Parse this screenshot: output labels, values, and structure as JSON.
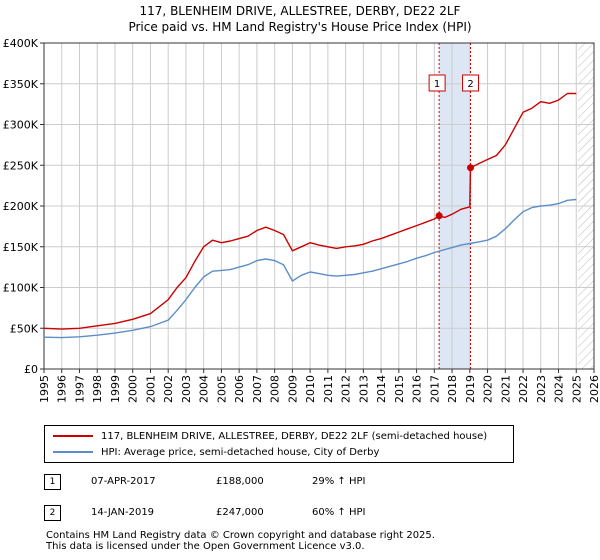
{
  "chart_data": {
    "type": "line",
    "title": "117, BLENHEIM DRIVE, ALLESTREE, DERBY, DE22 2LF",
    "subtitle": "Price paid vs. HM Land Registry's House Price Index (HPI)",
    "xlabel": "",
    "ylabel": "",
    "xlim": [
      1995,
      2026
    ],
    "ylim": [
      0,
      400000
    ],
    "x_ticks": [
      "1995",
      "1996",
      "1997",
      "1998",
      "1999",
      "2000",
      "2001",
      "2002",
      "2003",
      "2004",
      "2005",
      "2006",
      "2007",
      "2008",
      "2009",
      "2010",
      "2011",
      "2012",
      "2013",
      "2014",
      "2015",
      "2016",
      "2017",
      "2018",
      "2019",
      "2020",
      "2021",
      "2022",
      "2023",
      "2024",
      "2025",
      "2026"
    ],
    "y_ticks": [
      {
        "value": 0,
        "label": "£0"
      },
      {
        "value": 50000,
        "label": "£50K"
      },
      {
        "value": 100000,
        "label": "£100K"
      },
      {
        "value": 150000,
        "label": "£150K"
      },
      {
        "value": 200000,
        "label": "£200K"
      },
      {
        "value": 250000,
        "label": "£250K"
      },
      {
        "value": 300000,
        "label": "£300K"
      },
      {
        "value": 350000,
        "label": "£350K"
      },
      {
        "value": 400000,
        "label": "£400K"
      }
    ],
    "grid": true,
    "shaded_period": [
      2017.27,
      2019.04
    ],
    "future_hatch_from": 2025.1,
    "series": [
      {
        "name": "117, BLENHEIM DRIVE, ALLESTREE, DERBY, DE22 2LF (semi-detached house)",
        "color": "#cc0000",
        "points": [
          [
            1995,
            50000
          ],
          [
            1996,
            49000
          ],
          [
            1997,
            50000
          ],
          [
            1998,
            53000
          ],
          [
            1999,
            56000
          ],
          [
            2000,
            61000
          ],
          [
            2001,
            68000
          ],
          [
            2002,
            85000
          ],
          [
            2002.5,
            100000
          ],
          [
            2003,
            112000
          ],
          [
            2003.5,
            132000
          ],
          [
            2004,
            150000
          ],
          [
            2004.5,
            158000
          ],
          [
            2005,
            155000
          ],
          [
            2005.5,
            157000
          ],
          [
            2006,
            160000
          ],
          [
            2006.5,
            163000
          ],
          [
            2007,
            170000
          ],
          [
            2007.5,
            174000
          ],
          [
            2008,
            170000
          ],
          [
            2008.5,
            165000
          ],
          [
            2009,
            145000
          ],
          [
            2009.5,
            150000
          ],
          [
            2010,
            155000
          ],
          [
            2010.5,
            152000
          ],
          [
            2011,
            150000
          ],
          [
            2011.5,
            148000
          ],
          [
            2012,
            150000
          ],
          [
            2012.5,
            151000
          ],
          [
            2013,
            153000
          ],
          [
            2013.5,
            157000
          ],
          [
            2014,
            160000
          ],
          [
            2014.5,
            164000
          ],
          [
            2015,
            168000
          ],
          [
            2015.5,
            172000
          ],
          [
            2016,
            176000
          ],
          [
            2016.5,
            180000
          ],
          [
            2017,
            184000
          ],
          [
            2017.27,
            188000
          ],
          [
            2017.6,
            186000
          ],
          [
            2018,
            190000
          ],
          [
            2018.5,
            196000
          ],
          [
            2019,
            199000
          ],
          [
            2019.04,
            247000
          ],
          [
            2019.5,
            252000
          ],
          [
            2020,
            257000
          ],
          [
            2020.5,
            262000
          ],
          [
            2021,
            275000
          ],
          [
            2021.5,
            295000
          ],
          [
            2022,
            315000
          ],
          [
            2022.5,
            320000
          ],
          [
            2023,
            328000
          ],
          [
            2023.5,
            326000
          ],
          [
            2024,
            330000
          ],
          [
            2024.5,
            338000
          ],
          [
            2025,
            338000
          ]
        ]
      },
      {
        "name": "HPI: Average price, semi-detached house, City of Derby",
        "color": "#5b8ec9",
        "points": [
          [
            1995,
            39000
          ],
          [
            1996,
            38500
          ],
          [
            1997,
            39500
          ],
          [
            1998,
            41500
          ],
          [
            1999,
            44000
          ],
          [
            2000,
            47500
          ],
          [
            2001,
            52000
          ],
          [
            2002,
            60000
          ],
          [
            2002.5,
            72000
          ],
          [
            2003,
            85000
          ],
          [
            2003.5,
            100000
          ],
          [
            2004,
            113000
          ],
          [
            2004.5,
            120000
          ],
          [
            2005,
            121000
          ],
          [
            2005.5,
            122000
          ],
          [
            2006,
            125000
          ],
          [
            2006.5,
            128000
          ],
          [
            2007,
            133000
          ],
          [
            2007.5,
            135000
          ],
          [
            2008,
            133000
          ],
          [
            2008.5,
            128000
          ],
          [
            2009,
            108000
          ],
          [
            2009.5,
            115000
          ],
          [
            2010,
            119000
          ],
          [
            2010.5,
            117000
          ],
          [
            2011,
            115000
          ],
          [
            2011.5,
            114000
          ],
          [
            2012,
            115000
          ],
          [
            2012.5,
            116000
          ],
          [
            2013,
            118000
          ],
          [
            2013.5,
            120000
          ],
          [
            2014,
            123000
          ],
          [
            2014.5,
            126000
          ],
          [
            2015,
            129000
          ],
          [
            2015.5,
            132000
          ],
          [
            2016,
            136000
          ],
          [
            2016.5,
            139000
          ],
          [
            2017,
            143000
          ],
          [
            2017.5,
            146000
          ],
          [
            2018,
            149000
          ],
          [
            2018.5,
            152000
          ],
          [
            2019,
            154000
          ],
          [
            2019.5,
            156000
          ],
          [
            2020,
            158000
          ],
          [
            2020.5,
            163000
          ],
          [
            2021,
            172000
          ],
          [
            2021.5,
            183000
          ],
          [
            2022,
            193000
          ],
          [
            2022.5,
            198000
          ],
          [
            2023,
            200000
          ],
          [
            2023.5,
            201000
          ],
          [
            2024,
            203000
          ],
          [
            2024.5,
            207000
          ],
          [
            2025,
            208000
          ]
        ]
      }
    ],
    "markers": [
      {
        "id": "1",
        "x": 2017.27,
        "y": 188000
      },
      {
        "id": "2",
        "x": 2019.04,
        "y": 247000
      }
    ]
  },
  "legend": {
    "property": "117, BLENHEIM DRIVE, ALLESTREE, DERBY, DE22 2LF (semi-detached house)",
    "hpi": "HPI: Average price, semi-detached house, City of Derby"
  },
  "transactions": [
    {
      "id": "1",
      "date": "07-APR-2017",
      "price": "£188,000",
      "change": "29% ↑ HPI"
    },
    {
      "id": "2",
      "date": "14-JAN-2019",
      "price": "£247,000",
      "change": "60% ↑ HPI"
    }
  ],
  "footer": {
    "line1": "Contains HM Land Registry data © Crown copyright and database right 2025.",
    "line2": "This data is licensed under the Open Government Licence v3.0."
  },
  "colors": {
    "property": "#cc0000",
    "hpi": "#5b8ec9",
    "shade": "#dde6f5",
    "grid": "#cccccc"
  }
}
